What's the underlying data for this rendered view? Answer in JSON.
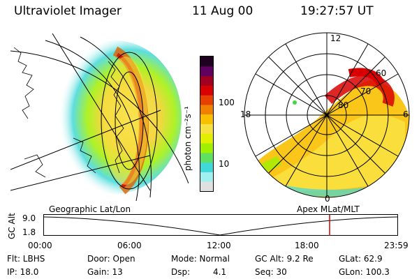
{
  "header": {
    "instrument": "Ultraviolet Imager",
    "date": "11 Aug 00",
    "time": "19:27:57 UT"
  },
  "colorbar": {
    "unit_label": "photon cm⁻²s⁻¹",
    "ticks": [
      {
        "label": "100",
        "value": 100
      },
      {
        "label": "10",
        "value": 10
      }
    ],
    "colors": [
      "#e0e0e0",
      "#a0f0f0",
      "#40d8d8",
      "#60e060",
      "#a0f000",
      "#e0f000",
      "#f8e040",
      "#f8c000",
      "#f08000",
      "#e84000",
      "#d80000",
      "#a00020",
      "#600060",
      "#200020"
    ]
  },
  "geo_panel": {
    "label": "Geographic Lat/Lon"
  },
  "polar_panel": {
    "label": "Apex MLat/MLT",
    "mlt_labels": [
      {
        "text": "12",
        "pos": "top"
      },
      {
        "text": "18",
        "pos": "left"
      },
      {
        "text": "6",
        "pos": "right"
      },
      {
        "text": "0",
        "pos": "bottom"
      }
    ],
    "mlat_labels": [
      "60",
      "70",
      "80"
    ]
  },
  "timeline": {
    "ylabel": "GC Alt",
    "y_ticks": [
      "9.0",
      "1.8"
    ],
    "x_ticks": [
      "00:00",
      "06:00",
      "12:00",
      "18:00",
      "23:59"
    ],
    "marker_time": "19:27:57",
    "marker_color": "#cc0000"
  },
  "status": {
    "flt": "Flt: LBHS",
    "door": "Door: Open",
    "mode": "Mode: Normal",
    "gc_alt": "GC Alt: 9.2 Re",
    "glat": "GLat: 62.9",
    "ip": "IP: 18.0",
    "gain": "Gain: 13",
    "dsp_label": "Dsp:",
    "dsp_value": "4.1",
    "seq": "Seq: 30",
    "glon": "GLon: 100.3"
  }
}
